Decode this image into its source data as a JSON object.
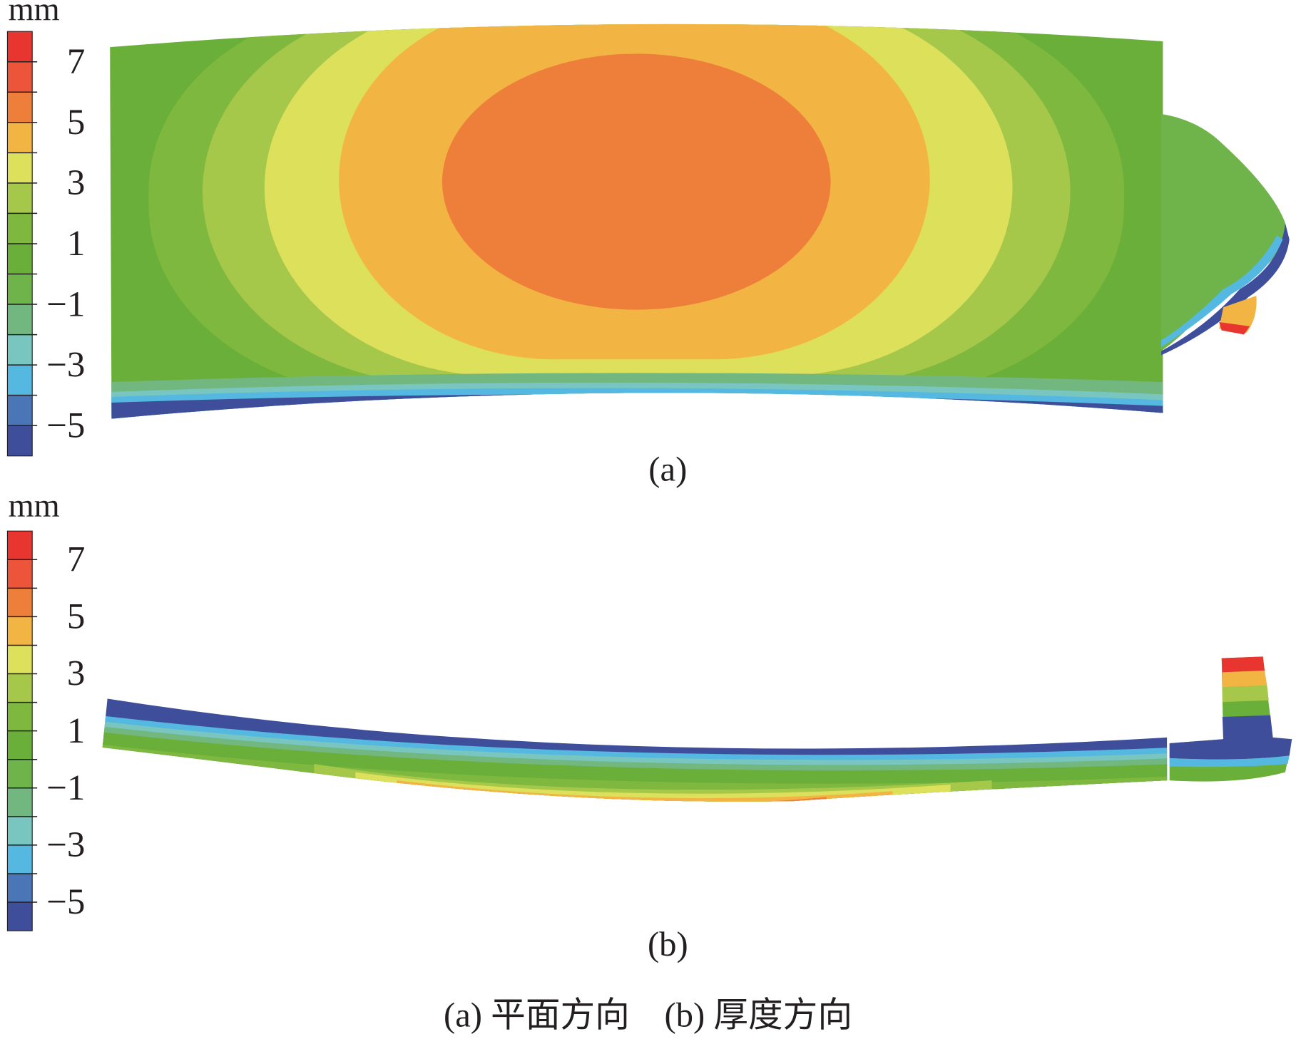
{
  "panels": [
    {
      "unit": "mm",
      "colorbar_labels": [
        "7",
        "5",
        "3",
        "1",
        "−1",
        "−3",
        "−5"
      ],
      "label": "(a)"
    },
    {
      "unit": "mm",
      "colorbar_labels": [
        "7",
        "5",
        "3",
        "1",
        "−1",
        "−3",
        "−5"
      ],
      "label": "(b)"
    }
  ],
  "caption": "(a) 平面方向　(b) 厚度方向"
}
